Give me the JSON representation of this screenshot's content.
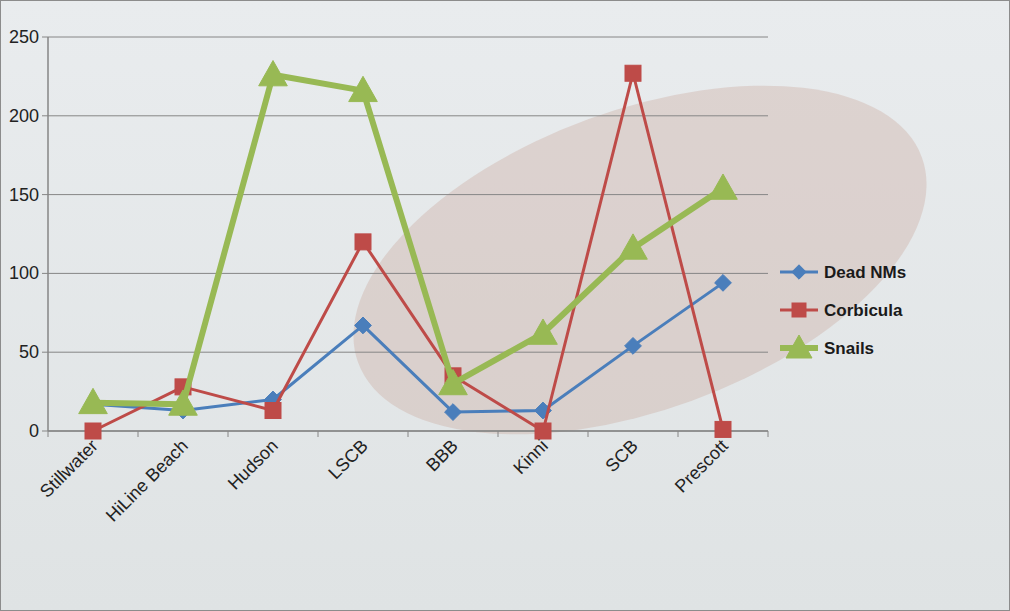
{
  "chart_data": {
    "type": "line",
    "categories": [
      "Stillwater",
      "HiLine Beach",
      "Hudson",
      "LSCB",
      "BBB",
      "Kinni",
      "SCB",
      "Prescott"
    ],
    "series": [
      {
        "name": "Dead NMs",
        "color": "#4a7ebb",
        "marker": "diamond",
        "values": [
          17,
          13,
          20,
          67,
          12,
          13,
          54,
          94
        ]
      },
      {
        "name": "Corbicula",
        "color": "#be4b48",
        "marker": "square",
        "values": [
          0,
          28,
          13,
          120,
          35,
          0,
          227,
          1
        ]
      },
      {
        "name": "Snails",
        "color": "#98b954",
        "marker": "triangle",
        "values": [
          18,
          17,
          226,
          216,
          30,
          62,
          116,
          154
        ]
      }
    ],
    "ylim": [
      0,
      250
    ],
    "yticks": [
      0,
      50,
      100,
      150,
      200,
      250
    ],
    "grid": true,
    "legend": "right"
  }
}
